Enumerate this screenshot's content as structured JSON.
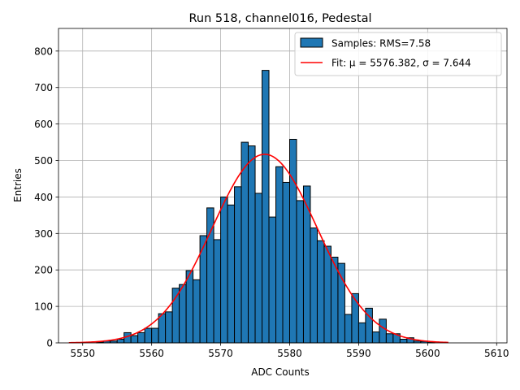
{
  "chart_data": {
    "type": "bar",
    "title": "Run 518, channel016, Pedestal",
    "xlabel": "ADC Counts",
    "ylabel": "Entries",
    "xlim": [
      5546.5,
      5611.5
    ],
    "ylim": [
      0,
      862
    ],
    "xticks": [
      5550,
      5560,
      5570,
      5580,
      5590,
      5600,
      5610
    ],
    "yticks": [
      0,
      100,
      200,
      300,
      400,
      500,
      600,
      700,
      800
    ],
    "grid": true,
    "bin_width": 1,
    "histogram": {
      "name": "Samples: RMS=7.58",
      "color": "#1f77b4",
      "bin_start": [
        5552,
        5553,
        5554,
        5555,
        5556,
        5557,
        5558,
        5559,
        5560,
        5561,
        5562,
        5563,
        5564,
        5565,
        5566,
        5567,
        5568,
        5569,
        5570,
        5571,
        5572,
        5573,
        5574,
        5575,
        5576,
        5577,
        5578,
        5579,
        5580,
        5581,
        5582,
        5583,
        5584,
        5585,
        5586,
        5587,
        5588,
        5589,
        5590,
        5591,
        5592,
        5593,
        5594,
        5595,
        5596,
        5597,
        5598,
        5599,
        5600
      ],
      "counts": [
        2,
        5,
        5,
        10,
        28,
        20,
        28,
        40,
        40,
        80,
        85,
        150,
        160,
        198,
        173,
        294,
        370,
        283,
        400,
        378,
        428,
        550,
        540,
        410,
        747,
        345,
        483,
        440,
        558,
        390,
        430,
        315,
        280,
        265,
        235,
        218,
        78,
        135,
        55,
        95,
        30,
        65,
        25,
        25,
        10,
        14,
        5,
        4,
        1
      ]
    },
    "fit": {
      "name": "Fit: μ = 5576.382, σ = 7.644",
      "color": "#ff0000",
      "mu": 5576.382,
      "sigma": 7.644,
      "amplitude": 517,
      "x_range": [
        5548,
        5603
      ]
    },
    "legend": "top-right"
  }
}
